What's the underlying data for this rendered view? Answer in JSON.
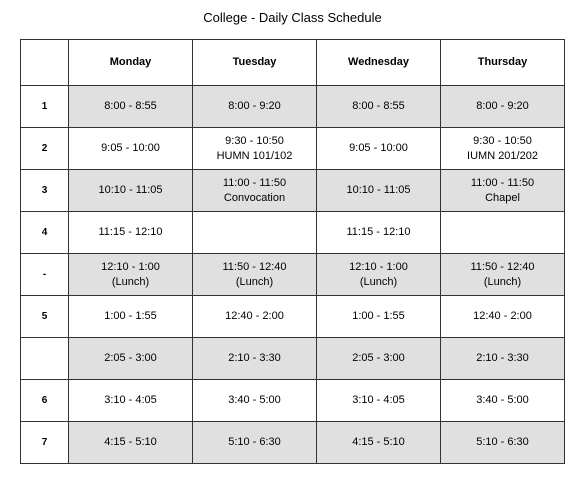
{
  "title": "College - Daily Class Schedule",
  "table": {
    "columns": [
      "",
      "Monday",
      "Tuesday",
      "Wednesday",
      "Thursday"
    ],
    "rows": [
      {
        "period": "1",
        "shaded": true,
        "cells": [
          "8:00 - 8:55",
          "8:00 - 9:20",
          "8:00 - 8:55",
          "8:00 - 9:20"
        ]
      },
      {
        "period": "2",
        "shaded": false,
        "cells": [
          "9:05 - 10:00",
          "9:30 - 10:50\nHUMN 101/102",
          "9:05 - 10:00",
          "9:30 - 10:50\nIUMN 201/202"
        ]
      },
      {
        "period": "3",
        "shaded": true,
        "cells": [
          "10:10 - 11:05",
          "11:00 - 11:50\nConvocation",
          "10:10 - 11:05",
          "11:00 - 11:50\nChapel"
        ]
      },
      {
        "period": "4",
        "shaded": false,
        "cells": [
          "11:15 - 12:10",
          "",
          "11:15 - 12:10",
          ""
        ]
      },
      {
        "period": "-",
        "shaded": true,
        "cells": [
          "12:10 - 1:00\n(Lunch)",
          "11:50 - 12:40\n(Lunch)",
          "12:10 - 1:00\n(Lunch)",
          "11:50 - 12:40\n(Lunch)"
        ]
      },
      {
        "period": "5",
        "shaded": false,
        "cells": [
          "1:00 - 1:55",
          "12:40 - 2:00",
          "1:00 - 1:55",
          "12:40 - 2:00"
        ]
      },
      {
        "period": "",
        "shaded": true,
        "cells": [
          "2:05 - 3:00",
          "2:10 - 3:30",
          "2:05 - 3:00",
          "2:10 - 3:30"
        ]
      },
      {
        "period": "6",
        "shaded": false,
        "cells": [
          "3:10 - 4:05",
          "3:40 - 5:00",
          "3:10 - 4:05",
          "3:40 - 5:00"
        ]
      },
      {
        "period": "7",
        "shaded": true,
        "cells": [
          "4:15 - 5:10",
          "5:10 - 6:30",
          "4:15 - 5:10",
          "5:10 - 6:30"
        ]
      }
    ],
    "header_bg": "#ffffff",
    "shaded_bg": "#e0e0e0",
    "white_bg": "#ffffff",
    "border_color": "#333333",
    "font_size_body": 11,
    "font_size_header": 11,
    "font_size_period": 10
  }
}
